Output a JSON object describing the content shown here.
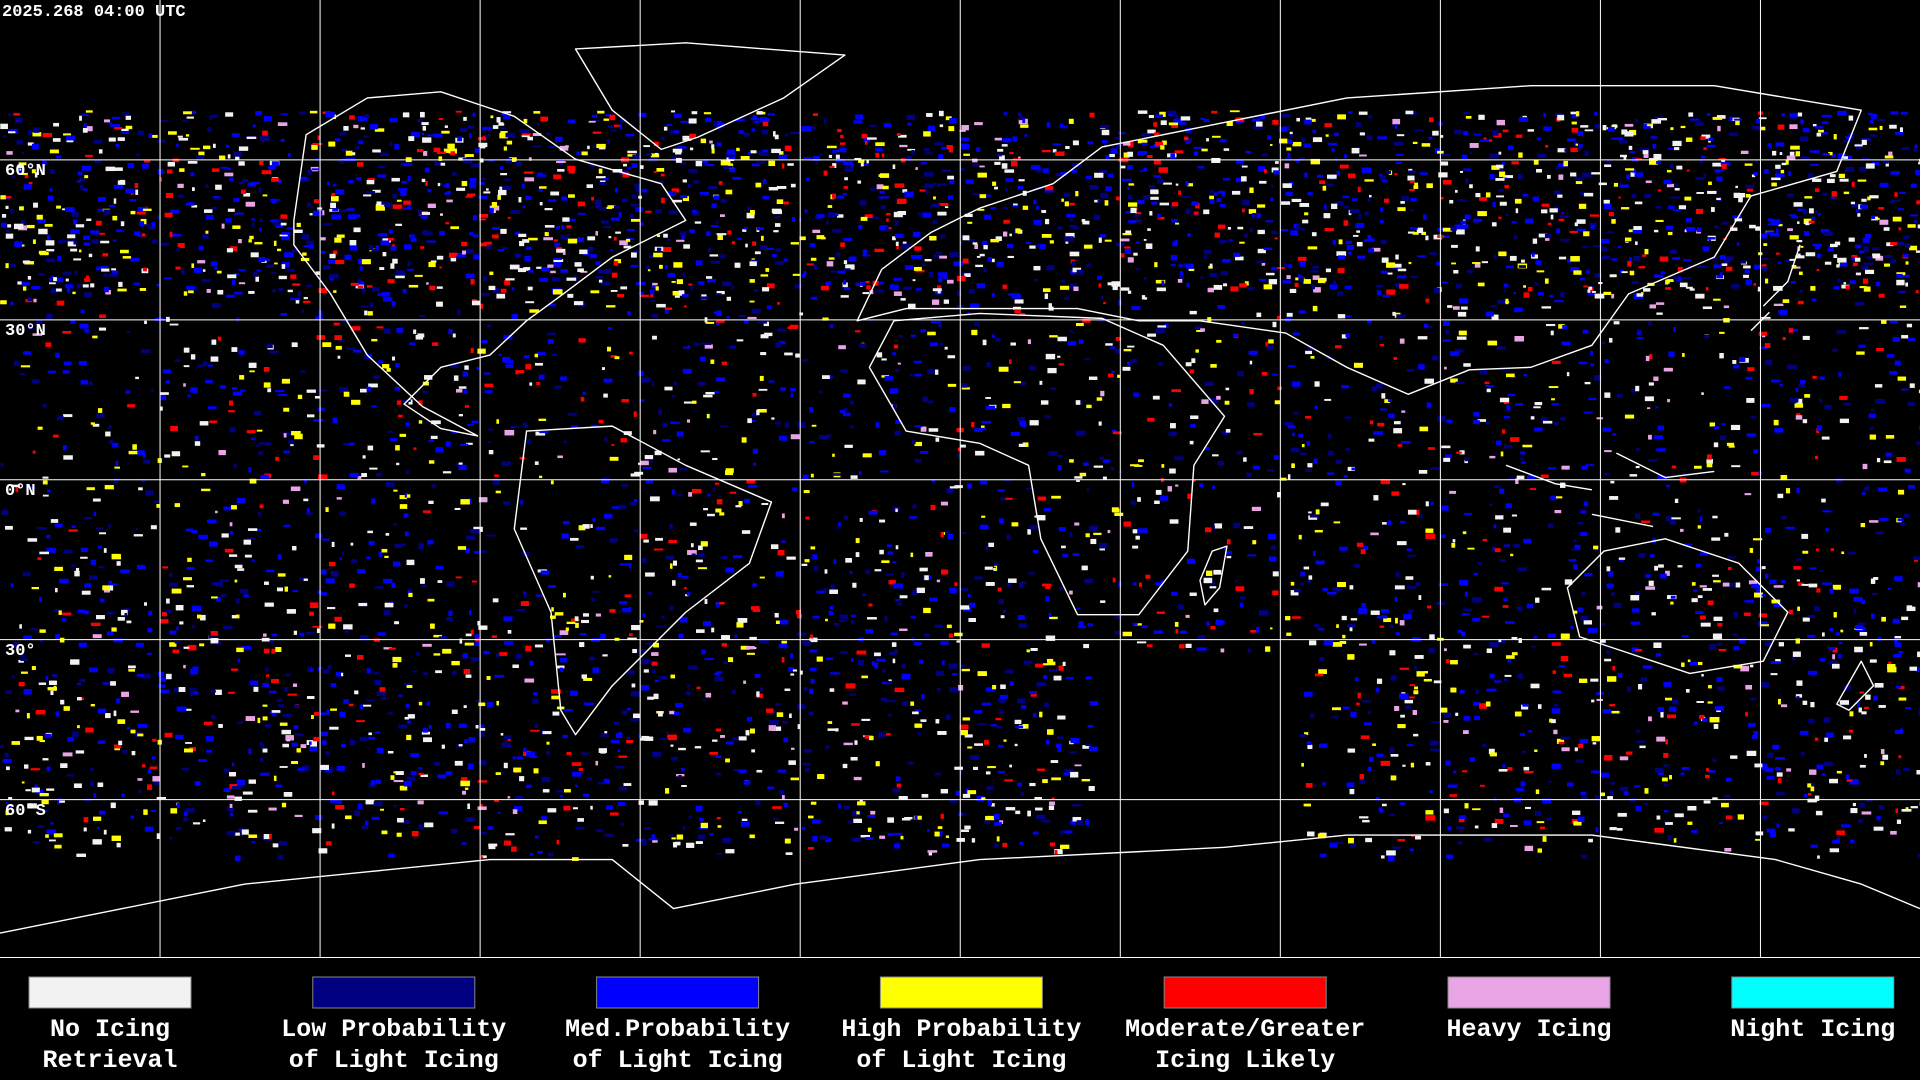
{
  "timestamp": "2025.268 04:00 UTC",
  "latitude_labels": [
    "60°N",
    "30°N",
    "0°N",
    "30°",
    "60°S"
  ],
  "legend": [
    {
      "label": [
        "No Icing",
        "Retrieval"
      ],
      "color": "#f2f2f2"
    },
    {
      "label": [
        "Low Probability",
        "of Light Icing"
      ],
      "color": "#000080"
    },
    {
      "label": [
        "Med.Probability",
        "of Light Icing"
      ],
      "color": "#0000ff"
    },
    {
      "label": [
        "High Probability",
        "of Light Icing"
      ],
      "color": "#ffff00"
    },
    {
      "label": [
        "Moderate/Greater",
        "Icing Likely"
      ],
      "color": "#ff0000"
    },
    {
      "label": [
        "Heavy Icing"
      ],
      "color": "#e8a4e4"
    },
    {
      "label": [
        "Night Icing"
      ],
      "color": "#00ffff"
    }
  ]
}
